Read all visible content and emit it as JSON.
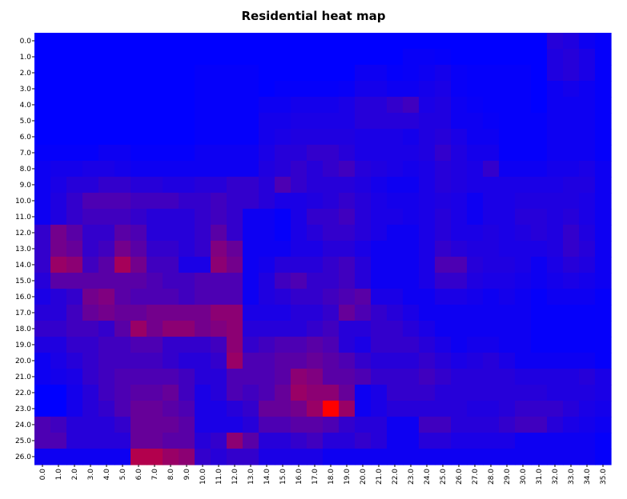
{
  "chart_data": {
    "type": "heatmap",
    "title": "Residential heat map",
    "xlabel": "",
    "ylabel": "",
    "x_labels": [
      "0.0",
      "1.0",
      "2.0",
      "3.0",
      "4.0",
      "5.0",
      "6.0",
      "7.0",
      "8.0",
      "9.0",
      "10.0",
      "11.0",
      "12.0",
      "13.0",
      "14.0",
      "15.0",
      "16.0",
      "17.0",
      "18.0",
      "19.0",
      "20.0",
      "21.0",
      "22.0",
      "23.0",
      "24.0",
      "25.0",
      "26.0",
      "27.0",
      "28.0",
      "29.0",
      "30.0",
      "31.0",
      "32.0",
      "33.0",
      "34.0",
      "35.0"
    ],
    "y_labels": [
      "0.0",
      "1.0",
      "2.0",
      "3.0",
      "4.0",
      "5.0",
      "6.0",
      "7.0",
      "8.0",
      "9.0",
      "10.0",
      "11.0",
      "12.0",
      "13.0",
      "14.0",
      "15.0",
      "16.0",
      "17.0",
      "18.0",
      "19.0",
      "20.0",
      "21.0",
      "22.0",
      "23.0",
      "24.0",
      "25.0",
      "26.0"
    ],
    "color_scale": {
      "low": "#0000ff",
      "high": "#ff0000"
    },
    "value_range": [
      0,
      1
    ],
    "values": [
      [
        0,
        0,
        0,
        0,
        0,
        0,
        0,
        0,
        0,
        0,
        0,
        0,
        0,
        0,
        0,
        0,
        0,
        0,
        0,
        0,
        0,
        0,
        0,
        0,
        0,
        0,
        0,
        0,
        0,
        0,
        0,
        0,
        0.15,
        0.12,
        0.05,
        0.02
      ],
      [
        0,
        0,
        0,
        0,
        0,
        0,
        0,
        0,
        0,
        0,
        0,
        0,
        0,
        0,
        0,
        0,
        0,
        0,
        0,
        0,
        0,
        0,
        0,
        0.03,
        0.03,
        0.02,
        0,
        0,
        0,
        0,
        0,
        0,
        0.12,
        0.15,
        0.1,
        0.02
      ],
      [
        0,
        0,
        0,
        0,
        0,
        0,
        0,
        0,
        0,
        0,
        0.02,
        0.02,
        0.02,
        0.02,
        0,
        0,
        0,
        0,
        0,
        0,
        0.05,
        0.05,
        0.02,
        0.03,
        0.05,
        0.08,
        0.03,
        0.02,
        0.02,
        0.02,
        0.02,
        0,
        0.12,
        0.15,
        0.1,
        0.02
      ],
      [
        0,
        0,
        0,
        0,
        0,
        0,
        0,
        0,
        0,
        0,
        0.02,
        0.02,
        0.02,
        0.02,
        0,
        0.02,
        0.02,
        0.02,
        0.02,
        0.03,
        0.08,
        0.08,
        0.05,
        0.05,
        0.08,
        0.1,
        0.03,
        0.02,
        0.02,
        0.02,
        0.02,
        0,
        0.05,
        0.08,
        0.05,
        0.02
      ],
      [
        0,
        0,
        0,
        0,
        0,
        0,
        0,
        0,
        0,
        0,
        0.02,
        0.02,
        0.02,
        0.02,
        0.05,
        0.05,
        0.08,
        0.08,
        0.08,
        0.1,
        0.15,
        0.15,
        0.2,
        0.25,
        0.1,
        0.12,
        0.05,
        0.03,
        0.02,
        0.02,
        0.02,
        0,
        0.05,
        0.05,
        0.05,
        0.02
      ],
      [
        0,
        0,
        0,
        0,
        0,
        0,
        0,
        0,
        0,
        0,
        0.02,
        0.02,
        0.02,
        0.02,
        0.08,
        0.08,
        0.1,
        0.1,
        0.1,
        0.1,
        0.15,
        0.15,
        0.15,
        0.15,
        0.12,
        0.12,
        0.05,
        0.05,
        0.03,
        0.02,
        0.02,
        0.02,
        0.05,
        0.05,
        0.05,
        0.02
      ],
      [
        0,
        0,
        0,
        0,
        0,
        0,
        0,
        0,
        0,
        0,
        0.02,
        0.02,
        0.02,
        0.02,
        0.08,
        0.1,
        0.12,
        0.12,
        0.12,
        0.12,
        0.1,
        0.1,
        0.1,
        0.08,
        0.12,
        0.15,
        0.1,
        0.05,
        0.05,
        0.02,
        0.02,
        0.02,
        0.05,
        0.05,
        0.05,
        0.02
      ],
      [
        0.02,
        0.02,
        0.02,
        0.02,
        0.05,
        0.05,
        0.02,
        0.02,
        0.02,
        0.02,
        0.05,
        0.05,
        0.05,
        0.05,
        0.1,
        0.15,
        0.15,
        0.2,
        0.2,
        0.15,
        0.1,
        0.1,
        0.1,
        0.1,
        0.12,
        0.2,
        0.12,
        0.08,
        0.08,
        0.02,
        0.02,
        0.02,
        0.05,
        0.05,
        0.05,
        0.02
      ],
      [
        0.05,
        0.08,
        0.08,
        0.1,
        0.1,
        0.08,
        0.05,
        0.05,
        0.05,
        0.05,
        0.05,
        0.05,
        0.05,
        0.05,
        0.12,
        0.15,
        0.2,
        0.15,
        0.2,
        0.25,
        0.15,
        0.12,
        0.1,
        0.08,
        0.1,
        0.15,
        0.12,
        0.1,
        0.2,
        0.05,
        0.05,
        0.05,
        0.08,
        0.08,
        0.1,
        0.05
      ],
      [
        0.05,
        0.1,
        0.15,
        0.15,
        0.2,
        0.2,
        0.15,
        0.15,
        0.12,
        0.12,
        0.15,
        0.15,
        0.2,
        0.2,
        0.15,
        0.3,
        0.2,
        0.15,
        0.15,
        0.15,
        0.12,
        0.08,
        0.05,
        0.05,
        0.1,
        0.15,
        0.12,
        0.1,
        0.1,
        0.1,
        0.1,
        0.1,
        0.1,
        0.12,
        0.12,
        0.05
      ],
      [
        0.05,
        0.12,
        0.2,
        0.3,
        0.3,
        0.3,
        0.25,
        0.25,
        0.25,
        0.2,
        0.2,
        0.25,
        0.2,
        0.2,
        0.15,
        0.1,
        0.1,
        0.12,
        0.15,
        0.2,
        0.15,
        0.1,
        0.08,
        0.08,
        0.1,
        0.12,
        0.1,
        0.05,
        0.1,
        0.1,
        0.12,
        0.12,
        0.12,
        0.12,
        0.1,
        0.05
      ],
      [
        0.05,
        0.12,
        0.2,
        0.25,
        0.25,
        0.25,
        0.2,
        0.15,
        0.15,
        0.15,
        0.2,
        0.25,
        0.2,
        0.05,
        0.05,
        0.02,
        0.1,
        0.2,
        0.2,
        0.25,
        0.15,
        0.1,
        0.1,
        0.08,
        0.1,
        0.15,
        0.1,
        0.05,
        0.1,
        0.1,
        0.15,
        0.15,
        0.12,
        0.15,
        0.1,
        0.05
      ],
      [
        0.2,
        0.45,
        0.35,
        0.2,
        0.2,
        0.35,
        0.3,
        0.15,
        0.15,
        0.15,
        0.2,
        0.35,
        0.2,
        0.05,
        0.05,
        0.02,
        0.1,
        0.15,
        0.2,
        0.2,
        0.15,
        0.1,
        0.05,
        0.05,
        0.1,
        0.15,
        0.1,
        0.1,
        0.12,
        0.1,
        0.12,
        0.15,
        0.12,
        0.2,
        0.12,
        0.05
      ],
      [
        0.2,
        0.45,
        0.4,
        0.2,
        0.25,
        0.45,
        0.35,
        0.2,
        0.2,
        0.15,
        0.2,
        0.5,
        0.4,
        0.05,
        0.05,
        0.05,
        0.1,
        0.1,
        0.15,
        0.15,
        0.1,
        0.05,
        0.05,
        0.05,
        0.1,
        0.2,
        0.15,
        0.12,
        0.12,
        0.1,
        0.1,
        0.1,
        0.12,
        0.2,
        0.15,
        0.05
      ],
      [
        0.2,
        0.6,
        0.55,
        0.25,
        0.35,
        0.65,
        0.45,
        0.25,
        0.25,
        0.1,
        0.1,
        0.55,
        0.45,
        0.05,
        0.08,
        0.15,
        0.15,
        0.15,
        0.2,
        0.25,
        0.15,
        0.05,
        0.05,
        0.05,
        0.1,
        0.3,
        0.3,
        0.15,
        0.12,
        0.12,
        0.1,
        0.05,
        0.1,
        0.15,
        0.12,
        0.05
      ],
      [
        0.15,
        0.35,
        0.35,
        0.35,
        0.35,
        0.35,
        0.35,
        0.3,
        0.25,
        0.25,
        0.3,
        0.3,
        0.3,
        0.05,
        0.12,
        0.25,
        0.3,
        0.2,
        0.2,
        0.25,
        0.15,
        0.05,
        0.05,
        0.05,
        0.1,
        0.2,
        0.2,
        0.12,
        0.1,
        0.1,
        0.08,
        0.05,
        0.08,
        0.1,
        0.08,
        0.05
      ],
      [
        0.1,
        0.15,
        0.2,
        0.45,
        0.5,
        0.35,
        0.3,
        0.3,
        0.3,
        0.25,
        0.3,
        0.3,
        0.3,
        0.05,
        0.12,
        0.15,
        0.2,
        0.2,
        0.25,
        0.3,
        0.35,
        0.1,
        0.1,
        0.05,
        0.05,
        0.1,
        0.1,
        0.08,
        0.05,
        0.08,
        0.05,
        0.02,
        0.05,
        0.05,
        0.05,
        0.02
      ],
      [
        0.15,
        0.15,
        0.25,
        0.4,
        0.45,
        0.4,
        0.4,
        0.45,
        0.45,
        0.45,
        0.45,
        0.55,
        0.55,
        0.1,
        0.1,
        0.1,
        0.15,
        0.15,
        0.2,
        0.4,
        0.3,
        0.2,
        0.15,
        0.1,
        0.05,
        0.05,
        0.05,
        0.05,
        0.05,
        0.05,
        0.05,
        0.02,
        0.02,
        0.02,
        0.02,
        0.02
      ],
      [
        0.2,
        0.2,
        0.25,
        0.25,
        0.2,
        0.35,
        0.6,
        0.45,
        0.55,
        0.55,
        0.45,
        0.5,
        0.55,
        0.15,
        0.15,
        0.15,
        0.15,
        0.2,
        0.25,
        0.15,
        0.15,
        0.2,
        0.2,
        0.15,
        0.1,
        0.05,
        0.05,
        0.05,
        0.05,
        0.05,
        0.05,
        0.02,
        0.02,
        0.02,
        0.02,
        0.02
      ],
      [
        0.12,
        0.12,
        0.2,
        0.2,
        0.25,
        0.25,
        0.3,
        0.3,
        0.2,
        0.2,
        0.2,
        0.25,
        0.55,
        0.2,
        0.25,
        0.3,
        0.3,
        0.35,
        0.3,
        0.15,
        0.1,
        0.2,
        0.2,
        0.2,
        0.15,
        0.1,
        0.05,
        0.08,
        0.08,
        0.05,
        0.05,
        0.02,
        0.02,
        0.02,
        0.02,
        0.02
      ],
      [
        0.05,
        0.1,
        0.15,
        0.2,
        0.25,
        0.25,
        0.25,
        0.25,
        0.2,
        0.15,
        0.15,
        0.2,
        0.6,
        0.3,
        0.3,
        0.35,
        0.35,
        0.4,
        0.35,
        0.3,
        0.2,
        0.15,
        0.15,
        0.15,
        0.2,
        0.15,
        0.1,
        0.12,
        0.15,
        0.1,
        0.05,
        0.05,
        0.05,
        0.05,
        0.05,
        0.02
      ],
      [
        0.05,
        0.08,
        0.1,
        0.2,
        0.25,
        0.3,
        0.3,
        0.3,
        0.3,
        0.25,
        0.15,
        0.15,
        0.3,
        0.3,
        0.3,
        0.35,
        0.55,
        0.5,
        0.35,
        0.35,
        0.3,
        0.2,
        0.2,
        0.2,
        0.25,
        0.2,
        0.15,
        0.15,
        0.15,
        0.15,
        0.12,
        0.12,
        0.12,
        0.12,
        0.15,
        0.1
      ],
      [
        0,
        0,
        0.08,
        0.15,
        0.25,
        0.3,
        0.35,
        0.35,
        0.4,
        0.25,
        0.1,
        0.15,
        0.3,
        0.25,
        0.3,
        0.4,
        0.6,
        0.55,
        0.55,
        0.4,
        0.05,
        0.1,
        0.2,
        0.2,
        0.2,
        0.15,
        0.15,
        0.15,
        0.15,
        0.15,
        0.15,
        0.15,
        0.12,
        0.12,
        0.12,
        0.1
      ],
      [
        0,
        0,
        0.08,
        0.15,
        0.2,
        0.3,
        0.4,
        0.4,
        0.35,
        0.3,
        0.1,
        0.1,
        0.15,
        0.2,
        0.4,
        0.4,
        0.45,
        0.6,
        1,
        0.6,
        0.05,
        0.1,
        0.15,
        0.15,
        0.15,
        0.15,
        0.15,
        0.12,
        0.12,
        0.15,
        0.2,
        0.2,
        0.2,
        0.15,
        0.1,
        0.08
      ],
      [
        0.3,
        0.25,
        0.15,
        0.15,
        0.15,
        0.2,
        0.4,
        0.4,
        0.4,
        0.35,
        0.1,
        0.1,
        0.1,
        0.15,
        0.3,
        0.3,
        0.35,
        0.35,
        0.3,
        0.2,
        0.15,
        0.15,
        0.05,
        0.05,
        0.25,
        0.25,
        0.15,
        0.15,
        0.15,
        0.2,
        0.25,
        0.25,
        0.15,
        0.1,
        0.08,
        0.05
      ],
      [
        0.3,
        0.3,
        0.15,
        0.15,
        0.15,
        0.15,
        0.4,
        0.4,
        0.35,
        0.35,
        0.15,
        0.2,
        0.55,
        0.35,
        0.15,
        0.15,
        0.2,
        0.25,
        0.15,
        0.15,
        0.2,
        0.15,
        0.05,
        0.05,
        0.15,
        0.15,
        0.1,
        0.1,
        0.1,
        0.1,
        0.05,
        0.05,
        0.05,
        0.05,
        0.05,
        0.02
      ],
      [
        0.05,
        0.05,
        0.05,
        0.05,
        0.05,
        0.05,
        0.7,
        0.7,
        0.6,
        0.55,
        0.2,
        0.15,
        0.2,
        0.2,
        0.1,
        0.1,
        0.1,
        0.1,
        0.05,
        0.05,
        0.05,
        0.05,
        0.05,
        0.05,
        0.05,
        0.05,
        0.05,
        0.05,
        0.05,
        0.05,
        0.05,
        0.05,
        0.05,
        0.05,
        0.05,
        0.02
      ]
    ]
  }
}
